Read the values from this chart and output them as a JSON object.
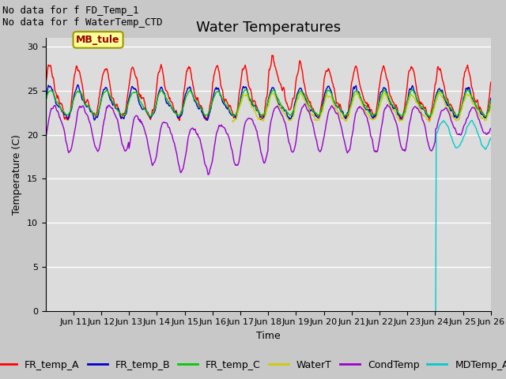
{
  "title": "Water Temperatures",
  "xlabel": "Time",
  "ylabel": "Temperature (C)",
  "note1": "No data for f FD_Temp_1",
  "note2": "No data for f WaterTemp_CTD",
  "mb_tule_label": "MB_tule",
  "ylim": [
    0,
    31
  ],
  "yticks": [
    0,
    5,
    10,
    15,
    20,
    25,
    30
  ],
  "xlim": [
    10,
    26
  ],
  "xtick_positions": [
    11,
    12,
    13,
    14,
    15,
    16,
    17,
    18,
    19,
    20,
    21,
    22,
    23,
    24,
    25,
    26
  ],
  "xtick_labels": [
    "Jun 11",
    "Jun 12",
    "Jun 13",
    "Jun 14",
    "Jun 15",
    "Jun 16",
    "Jun 17",
    "Jun 18",
    "Jun 19",
    "Jun 20",
    "Jun 21",
    "Jun 22",
    "Jun 23",
    "Jun 24",
    "Jun 25",
    "Jun 26"
  ],
  "colors": {
    "FR_temp_A": "#ff0000",
    "FR_temp_B": "#0000cc",
    "FR_temp_C": "#00cc00",
    "WaterT": "#cccc00",
    "CondTemp": "#9900cc",
    "MDTemp_A": "#00cccc"
  },
  "bg_color": "#dcdcdc",
  "grid_color": "#ffffff",
  "title_fontsize": 13,
  "label_fontsize": 9,
  "tick_fontsize": 8,
  "legend_fontsize": 9,
  "lw": 1.0
}
